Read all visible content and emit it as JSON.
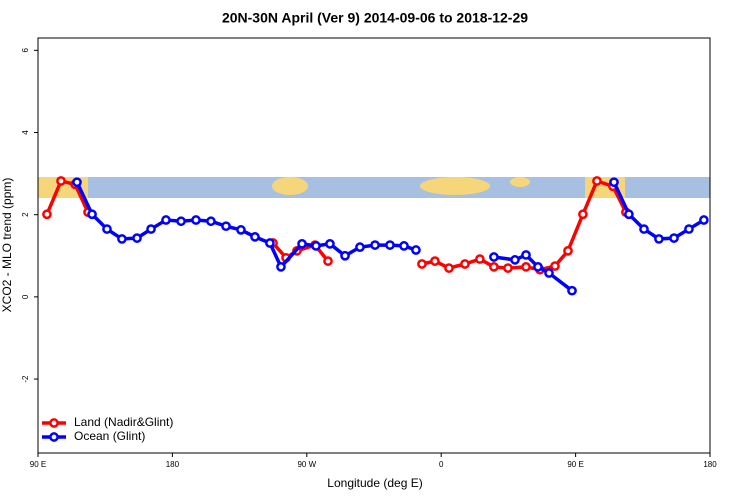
{
  "chart_data": {
    "type": "line",
    "title": "20N-30N April (Ver 9)   2014-09-06 to 2018-12-29",
    "x_label": "Longitude (deg E)",
    "y_label": "XCO2 - MLO trend (ppm)",
    "xlim": [
      90,
      540
    ],
    "ylim": [
      -3.8,
      6.3
    ],
    "xticks": [
      {
        "value": 90,
        "label": "90 E"
      },
      180,
      {
        "value": 270,
        "label": "90 W"
      },
      {
        "value": 360,
        "label": "0"
      },
      {
        "value": 450,
        "label": "90 E"
      },
      {
        "value": 540,
        "label": "180"
      }
    ],
    "yticks": [
      -2,
      0,
      2,
      4,
      6
    ],
    "legend": "bottom-left",
    "series": [
      {
        "name": "Land (Nadir&Glint)",
        "color": "#ff0000",
        "x": [
          96.0,
          105.4,
          114.8,
          123.5,
          null,
          247.4,
          256.1,
          263.4,
          275.5,
          284.2,
          null,
          347.1,
          355.8,
          365.2,
          375.9,
          385.9,
          395.3,
          404.7,
          416.8,
          426.1,
          436.2,
          444.9,
          454.9,
          464.3,
          475.0,
          483.7
        ],
        "values": [
          2.01,
          2.82,
          2.74,
          2.06,
          null,
          1.31,
          0.95,
          1.12,
          1.26,
          0.87,
          null,
          0.8,
          0.87,
          0.7,
          0.8,
          0.92,
          0.73,
          0.7,
          0.73,
          0.66,
          0.75,
          1.12,
          2.01,
          2.82,
          2.69,
          2.06
        ]
      },
      {
        "name": "Ocean (Glint)",
        "color": "#0000ff",
        "x": [
          116.1,
          126.2,
          136.2,
          146.2,
          156.3,
          165.7,
          175.7,
          185.8,
          195.8,
          205.8,
          215.9,
          225.9,
          235.3,
          245.3,
          252.7,
          266.8,
          276.2,
          285.5,
          295.6,
          305.6,
          315.7,
          325.7,
          335.1,
          343.1,
          null,
          395.3,
          409.4,
          416.8,
          424.8,
          432.2,
          447.6,
          null,
          475.7,
          485.7,
          495.8,
          505.8,
          515.9,
          525.9,
          535.9
        ],
        "values": [
          2.79,
          2.01,
          1.65,
          1.41,
          1.43,
          1.65,
          1.87,
          1.84,
          1.87,
          1.84,
          1.72,
          1.63,
          1.46,
          1.31,
          0.73,
          1.29,
          1.24,
          1.29,
          1.0,
          1.21,
          1.26,
          1.26,
          1.24,
          1.14,
          null,
          0.97,
          0.9,
          1.02,
          0.73,
          0.58,
          0.15,
          null,
          2.79,
          2.01,
          1.65,
          1.41,
          1.43,
          1.65,
          1.87
        ]
      }
    ]
  }
}
